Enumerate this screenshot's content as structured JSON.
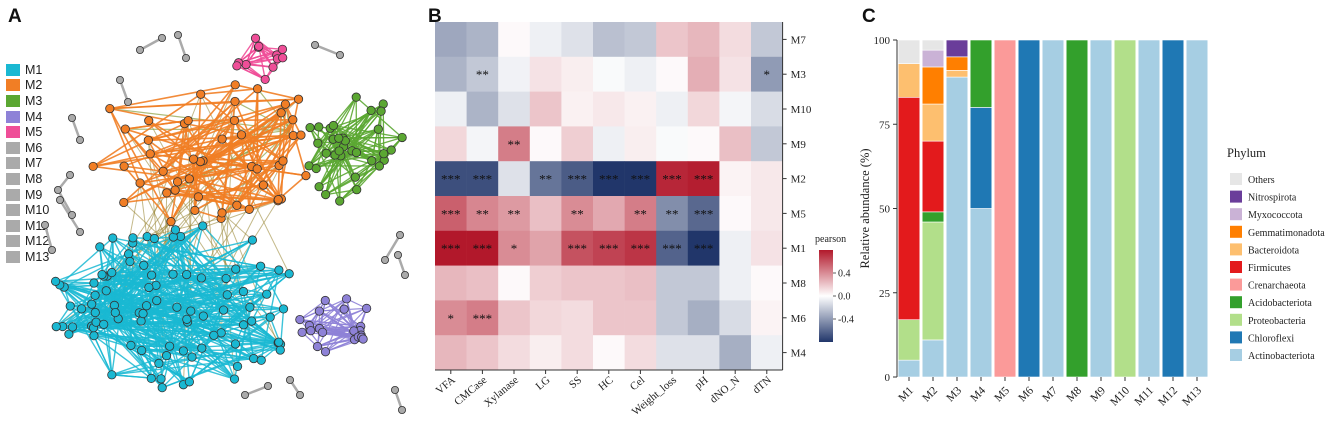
{
  "panels": {
    "a": "A",
    "b": "B",
    "c": "C"
  },
  "network": {
    "modules": [
      "M1",
      "M2",
      "M3",
      "M4",
      "M5",
      "M6",
      "M7",
      "M8",
      "M9",
      "M10",
      "M11",
      "M12",
      "M13"
    ],
    "colors": [
      "#1ab8d2",
      "#f17e25",
      "#5ba732",
      "#8e82d7",
      "#ef4e98",
      "#aaaaaa",
      "#aaaaaa",
      "#aaaaaa",
      "#aaaaaa",
      "#aaaaaa",
      "#aaaaaa",
      "#aaaaaa",
      "#aaaaaa"
    ]
  },
  "chart_data": [
    {
      "type": "heatmap",
      "title": "",
      "x_labels": [
        "VFA",
        "CMCase",
        "Xylanase",
        "LG",
        "SS",
        "HC",
        "Cel",
        "Weight_loss",
        "pH",
        "dNO_N",
        "dTN"
      ],
      "y_labels": [
        "M7",
        "M3",
        "M10",
        "M9",
        "M2",
        "M5",
        "M1",
        "M8",
        "M6",
        "M4"
      ],
      "values": [
        [
          -0.35,
          -0.3,
          0.02,
          -0.06,
          -0.12,
          -0.25,
          -0.22,
          0.2,
          0.25,
          0.12,
          -0.22
        ],
        [
          -0.3,
          -0.22,
          -0.05,
          0.1,
          0.06,
          -0.02,
          -0.06,
          0.02,
          0.28,
          0.1,
          -0.4
        ],
        [
          -0.06,
          -0.3,
          -0.12,
          0.2,
          0.05,
          0.08,
          0.05,
          -0.06,
          0.14,
          -0.04,
          -0.14
        ],
        [
          0.14,
          -0.04,
          0.45,
          0.02,
          0.17,
          -0.06,
          0.06,
          -0.02,
          0.02,
          0.22,
          -0.22
        ],
        [
          -0.7,
          -0.7,
          -0.12,
          -0.55,
          -0.65,
          -0.8,
          -0.8,
          0.75,
          0.78,
          0.04,
          0.08
        ],
        [
          0.55,
          0.42,
          0.35,
          0.22,
          0.4,
          0.3,
          0.45,
          -0.45,
          -0.6,
          0.02,
          0.08
        ],
        [
          0.82,
          0.88,
          0.4,
          0.32,
          0.6,
          0.65,
          0.7,
          -0.62,
          -0.85,
          -0.06,
          0.1
        ],
        [
          0.25,
          0.22,
          0.02,
          0.17,
          0.2,
          0.2,
          0.22,
          -0.22,
          -0.22,
          -0.06,
          0.02
        ],
        [
          0.4,
          0.45,
          0.2,
          0.14,
          0.12,
          0.2,
          0.2,
          -0.22,
          -0.32,
          -0.14,
          0.04
        ],
        [
          0.25,
          0.2,
          0.12,
          0.06,
          0.12,
          0.02,
          0.12,
          -0.12,
          -0.12,
          -0.32,
          -0.06
        ]
      ],
      "stars": [
        [
          "",
          "",
          "",
          "",
          "",
          "",
          "",
          "",
          "",
          "",
          ""
        ],
        [
          "",
          "**",
          "",
          "",
          "",
          "",
          "",
          "",
          "",
          "",
          "*"
        ],
        [
          "",
          "",
          "",
          "",
          "",
          "",
          "",
          "",
          "",
          "",
          ""
        ],
        [
          "",
          "",
          "**",
          "",
          "",
          "",
          "",
          "",
          "",
          "",
          ""
        ],
        [
          "***",
          "***",
          "",
          "**",
          "***",
          "***",
          "***",
          "***",
          "***",
          "",
          ""
        ],
        [
          "***",
          "**",
          "**",
          "",
          "**",
          "",
          "**",
          "**",
          "***",
          "",
          ""
        ],
        [
          "***",
          "***",
          "*",
          "",
          "***",
          "***",
          "***",
          "***",
          "***",
          "",
          ""
        ],
        [
          "",
          "",
          "",
          "",
          "",
          "",
          "",
          "",
          "",
          "",
          ""
        ],
        [
          "*",
          "***",
          "",
          "",
          "",
          "",
          "",
          "",
          "",
          "",
          ""
        ],
        [
          "",
          "",
          "",
          "",
          "",
          "",
          "",
          "",
          "",
          "",
          ""
        ]
      ],
      "legend_title": "pearson",
      "legend_ticks": [
        "0.4",
        "0.0",
        "-0.4"
      ],
      "vmin": -0.8,
      "vmax": 0.8
    },
    {
      "type": "bar",
      "stacked": true,
      "categories": [
        "M1",
        "M2",
        "M3",
        "M4",
        "M5",
        "M6",
        "M7",
        "M8",
        "M9",
        "M10",
        "M11",
        "M12",
        "M13"
      ],
      "ylabel": "Relative abundance (%)",
      "ylim": [
        0,
        100
      ],
      "yticks": [
        "0",
        "25",
        "50",
        "75",
        "100"
      ],
      "legend_title": "Phylum",
      "series": [
        {
          "name": "Actinobacteriota",
          "color": "#a6cee3",
          "values": [
            5,
            11,
            89,
            50,
            0,
            0,
            100,
            0,
            100,
            0,
            100,
            0,
            100
          ]
        },
        {
          "name": "Chloroflexi",
          "color": "#1f78b4",
          "values": [
            0,
            0,
            0,
            30,
            0,
            100,
            0,
            0,
            0,
            0,
            0,
            100,
            0
          ]
        },
        {
          "name": "Proteobacteria",
          "color": "#b2df8a",
          "values": [
            12,
            35,
            0,
            0,
            0,
            0,
            0,
            0,
            0,
            100,
            0,
            0,
            0
          ]
        },
        {
          "name": "Acidobacteriota",
          "color": "#33a02c",
          "values": [
            0,
            3,
            0,
            20,
            0,
            0,
            0,
            100,
            0,
            0,
            0,
            0,
            0
          ]
        },
        {
          "name": "Crenarchaeota",
          "color": "#fb9a99",
          "values": [
            0,
            0,
            0,
            0,
            100,
            0,
            0,
            0,
            0,
            0,
            0,
            0,
            0
          ]
        },
        {
          "name": "Firmicutes",
          "color": "#e31a1c",
          "values": [
            66,
            21,
            0,
            0,
            0,
            0,
            0,
            0,
            0,
            0,
            0,
            0,
            0
          ]
        },
        {
          "name": "Bacteroidota",
          "color": "#fdbf6f",
          "values": [
            10,
            11,
            2,
            0,
            0,
            0,
            0,
            0,
            0,
            0,
            0,
            0,
            0
          ]
        },
        {
          "name": "Gemmatimonadota",
          "color": "#ff7f00",
          "values": [
            0,
            11,
            4,
            0,
            0,
            0,
            0,
            0,
            0,
            0,
            0,
            0,
            0
          ]
        },
        {
          "name": "Myxococcota",
          "color": "#cab2d6",
          "values": [
            0,
            5,
            0,
            0,
            0,
            0,
            0,
            0,
            0,
            0,
            0,
            0,
            0
          ]
        },
        {
          "name": "Nitrospirota",
          "color": "#6a3d9a",
          "values": [
            0,
            0,
            5,
            0,
            0,
            0,
            0,
            0,
            0,
            0,
            0,
            0,
            0
          ]
        },
        {
          "name": "Others",
          "color": "#e6e6e6",
          "values": [
            7,
            3,
            0,
            0,
            0,
            0,
            0,
            0,
            0,
            0,
            0,
            0,
            0
          ]
        }
      ]
    }
  ]
}
